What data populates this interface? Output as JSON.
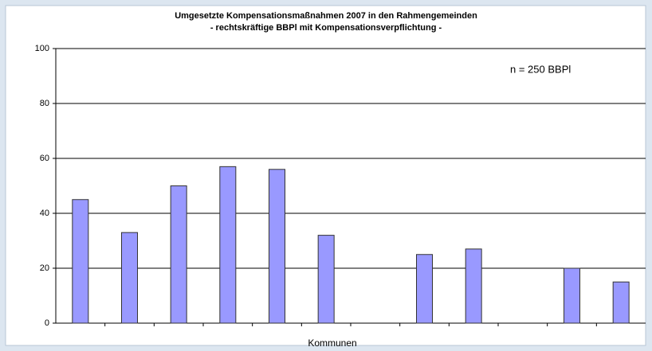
{
  "chart_data": {
    "type": "bar",
    "title": "Umgesetzte Kompensationsmaßnahmen 2007 in den Rahmengemeinden",
    "subtitle": "- rechtskräftige BBPl mit Kompensationsverpflichtung -",
    "annotation": "n = 250 BBPl",
    "x_label": "Kommunen",
    "categories": [
      null,
      null,
      null,
      null,
      null,
      null,
      null,
      null,
      null,
      null,
      null,
      null
    ],
    "values": [
      45,
      33,
      50,
      57,
      56,
      32,
      0,
      25,
      27,
      0,
      20,
      15
    ],
    "color": "#9999ff",
    "ylim": [
      0,
      100
    ],
    "yticks": [
      0,
      20,
      40,
      60,
      80,
      100
    ],
    "grid": true
  }
}
